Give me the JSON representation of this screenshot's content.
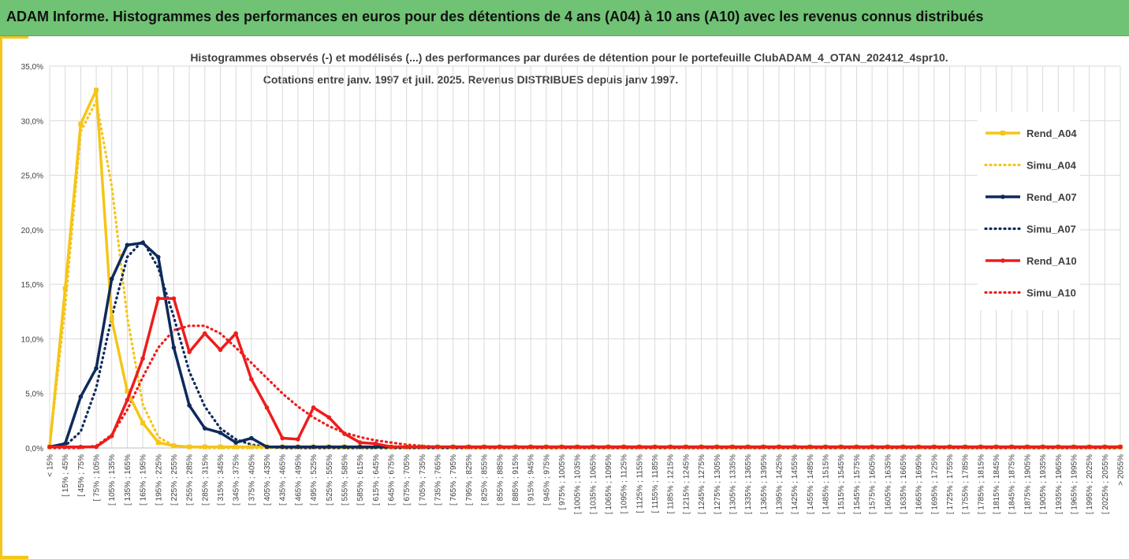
{
  "header": {
    "title": "ADAM Informe. Histogrammes des performances en euros pour des détentions de 4 ans (A04) à 10 ans (A10) avec les revenus connus distribués"
  },
  "colors": {
    "banner": "#70c274",
    "accent": "#f5c518",
    "A04": "#f5c518",
    "A07": "#0e2a5c",
    "A10": "#ee1c1c",
    "grid": "#d9d9d9"
  },
  "chart_data": {
    "type": "line",
    "title": "Histogrammes observés (-) et modélisés (...) des performances par durées de détention pour le portefeuille ClubADAM_4_OTAN_202412_4spr10.",
    "subtitle": "Cotations entre janv. 1997 et juil. 2025. Revenus DISTRIBUES depuis janv 1997.",
    "xlabel": "",
    "ylabel": "",
    "ylim": [
      0,
      0.35
    ],
    "yticks": [
      "0,0%",
      "5,0%",
      "10,0%",
      "15,0%",
      "20,0%",
      "25,0%",
      "30,0%",
      "35,0%"
    ],
    "grid": true,
    "legend_position": "right",
    "categories": [
      "< 15%",
      "[ 15% ; 45%",
      "[ 45% ; 75%",
      "[ 75% ; 105%",
      "[ 105% ; 135%",
      "[ 135% ; 165%",
      "[ 165% ; 195%",
      "[ 195% ; 225%",
      "[ 225% ; 255%",
      "[ 255% ; 285%",
      "[ 285% ; 315%",
      "[ 315% ; 345%",
      "[ 345% ; 375%",
      "[ 375% ; 405%",
      "[ 405% ; 435%",
      "[ 435% ; 465%",
      "[ 465% ; 495%",
      "[ 495% ; 525%",
      "[ 525% ; 555%",
      "[ 555% ; 585%",
      "[ 585% ; 615%",
      "[ 615% ; 645%",
      "[ 645% ; 675%",
      "[ 675% ; 705%",
      "[ 705% ; 735%",
      "[ 735% ; 765%",
      "[ 765% ; 795%",
      "[ 795% ; 825%",
      "[ 825% ; 855%",
      "[ 855% ; 885%",
      "[ 885% ; 915%",
      "[ 915% ; 945%",
      "[ 945% ; 975%",
      "[ 975% ; 1005%",
      "[ 1005% ; 1035%",
      "[ 1035% ; 1065%",
      "[ 1065% ; 1095%",
      "[ 1095% ; 1125%",
      "[ 1125% ; 1155%",
      "[ 1155% ; 1185%",
      "[ 1185% ; 1215%",
      "[ 1215% ; 1245%",
      "[ 1245% ; 1275%",
      "[ 1275% ; 1305%",
      "[ 1305% ; 1335%",
      "[ 1335% ; 1365%",
      "[ 1365% ; 1395%",
      "[ 1395% ; 1425%",
      "[ 1425% ; 1455%",
      "[ 1455% ; 1485%",
      "[ 1485% ; 1515%",
      "[ 1515% ; 1545%",
      "[ 1545% ; 1575%",
      "[ 1575% ; 1605%",
      "[ 1605% ; 1635%",
      "[ 1635% ; 1665%",
      "[ 1665% ; 1695%",
      "[ 1695% ; 1725%",
      "[ 1725% ; 1755%",
      "[ 1755% ; 1785%",
      "[ 1785% ; 1815%",
      "[ 1815% ; 1845%",
      "[ 1845% ; 1875%",
      "[ 1875% ; 1905%",
      "[ 1905% ; 1935%",
      "[ 1935% ; 1965%",
      "[ 1965% ; 1995%",
      "[ 1995% ; 2025%",
      "[ 2025% ; 2055%",
      "> 2055%"
    ],
    "series": [
      {
        "name": "Rend_A04",
        "style": "solid",
        "marker": "square",
        "color": "#f5c518",
        "values": [
          0.001,
          0.146,
          0.297,
          0.328,
          0.118,
          0.052,
          0.023,
          0.005,
          0.002,
          0.001,
          0.001,
          0.001,
          0.001,
          0.001,
          0.001,
          0.001,
          0.001,
          0.001,
          0.001,
          0.001,
          0.001,
          0.001,
          0.001,
          0.001,
          0.001,
          0.001,
          0.001,
          0.001,
          0.001,
          0.001,
          0.001,
          0.001,
          0.001,
          0.001,
          0.001,
          0.001,
          0.001,
          0.001,
          0.001,
          0.001,
          0.001,
          0.001,
          0.001,
          0.001,
          0.001,
          0.001,
          0.001,
          0.001,
          0.001,
          0.001,
          0.001,
          0.001,
          0.001,
          0.001,
          0.001,
          0.001,
          0.001,
          0.001,
          0.001,
          0.001,
          0.001,
          0.001,
          0.001,
          0.001,
          0.001,
          0.001,
          0.001,
          0.001,
          0.001,
          0.001
        ]
      },
      {
        "name": "Simu_A04",
        "style": "dotted",
        "marker": "none",
        "color": "#f5c518",
        "values": [
          0.002,
          0.13,
          0.29,
          0.318,
          0.24,
          0.12,
          0.04,
          0.01,
          0.002,
          0.001,
          0,
          0,
          0,
          0,
          0,
          0,
          0,
          0,
          0,
          0,
          0,
          0,
          0,
          0,
          0,
          0,
          0,
          0,
          0,
          0,
          0,
          0,
          0,
          0,
          0,
          0,
          0,
          0,
          0,
          0,
          0,
          0,
          0,
          0,
          0,
          0,
          0,
          0,
          0,
          0,
          0,
          0,
          0,
          0,
          0,
          0,
          0,
          0,
          0,
          0,
          0,
          0,
          0,
          0,
          0,
          0,
          0,
          0,
          0,
          0
        ]
      },
      {
        "name": "Rend_A07",
        "style": "solid",
        "marker": "circle",
        "color": "#0e2a5c",
        "values": [
          0.001,
          0.004,
          0.047,
          0.073,
          0.155,
          0.186,
          0.188,
          0.175,
          0.092,
          0.039,
          0.018,
          0.014,
          0.005,
          0.009,
          0.001,
          0.001,
          0.001,
          0.001,
          0.001,
          0.001,
          0.001,
          0.001,
          0.001,
          0.001,
          0.001,
          0.001,
          0.001,
          0.001,
          0.001,
          0.001,
          0.001,
          0.001,
          0.001,
          0.001,
          0.001,
          0.001,
          0.001,
          0.001,
          0.001,
          0.001,
          0.001,
          0.001,
          0.001,
          0.001,
          0.001,
          0.001,
          0.001,
          0.001,
          0.001,
          0.001,
          0.001,
          0.001,
          0.001,
          0.001,
          0.001,
          0.001,
          0.001,
          0.001,
          0.001,
          0.001,
          0.001,
          0.001,
          0.001,
          0.001,
          0.001,
          0.001,
          0.001,
          0.001,
          0.001,
          0.001
        ]
      },
      {
        "name": "Simu_A07",
        "style": "dotted",
        "marker": "none",
        "color": "#0e2a5c",
        "values": [
          0.001,
          0.002,
          0.015,
          0.055,
          0.12,
          0.175,
          0.19,
          0.165,
          0.12,
          0.07,
          0.038,
          0.018,
          0.008,
          0.003,
          0.001,
          0,
          0,
          0,
          0,
          0,
          0,
          0,
          0,
          0,
          0,
          0,
          0,
          0,
          0,
          0,
          0,
          0,
          0,
          0,
          0,
          0,
          0,
          0,
          0,
          0,
          0,
          0,
          0,
          0,
          0,
          0,
          0,
          0,
          0,
          0,
          0,
          0,
          0,
          0,
          0,
          0,
          0,
          0,
          0,
          0,
          0,
          0,
          0,
          0,
          0,
          0,
          0,
          0,
          0,
          0
        ]
      },
      {
        "name": "Rend_A10",
        "style": "solid",
        "marker": "circle",
        "color": "#ee1c1c",
        "values": [
          0.001,
          0.001,
          0.001,
          0.001,
          0.011,
          0.044,
          0.082,
          0.137,
          0.137,
          0.088,
          0.105,
          0.09,
          0.105,
          0.063,
          0.037,
          0.009,
          0.008,
          0.037,
          0.028,
          0.013,
          0.005,
          0.004,
          0.001,
          0.001,
          0.001,
          0.001,
          0.001,
          0.001,
          0.001,
          0.001,
          0.001,
          0.001,
          0.001,
          0.001,
          0.001,
          0.001,
          0.001,
          0.001,
          0.001,
          0.001,
          0.001,
          0.001,
          0.001,
          0.001,
          0.001,
          0.001,
          0.001,
          0.001,
          0.001,
          0.001,
          0.001,
          0.001,
          0.001,
          0.001,
          0.001,
          0.001,
          0.001,
          0.001,
          0.001,
          0.001,
          0.001,
          0.001,
          0.001,
          0.001,
          0.001,
          0.001,
          0.001,
          0.001,
          0.001,
          0.001
        ]
      },
      {
        "name": "Simu_A10",
        "style": "dotted",
        "marker": "none",
        "color": "#ee1c1c",
        "values": [
          0,
          0,
          0,
          0.002,
          0.012,
          0.035,
          0.065,
          0.092,
          0.108,
          0.112,
          0.112,
          0.105,
          0.092,
          0.078,
          0.064,
          0.05,
          0.038,
          0.028,
          0.02,
          0.014,
          0.01,
          0.007,
          0.005,
          0.003,
          0.002,
          0.001,
          0.001,
          0,
          0,
          0,
          0,
          0,
          0,
          0,
          0,
          0,
          0,
          0,
          0,
          0,
          0,
          0,
          0,
          0,
          0,
          0,
          0,
          0,
          0,
          0,
          0,
          0,
          0,
          0,
          0,
          0,
          0,
          0,
          0,
          0,
          0,
          0,
          0,
          0,
          0,
          0,
          0,
          0,
          0,
          0
        ]
      }
    ]
  }
}
